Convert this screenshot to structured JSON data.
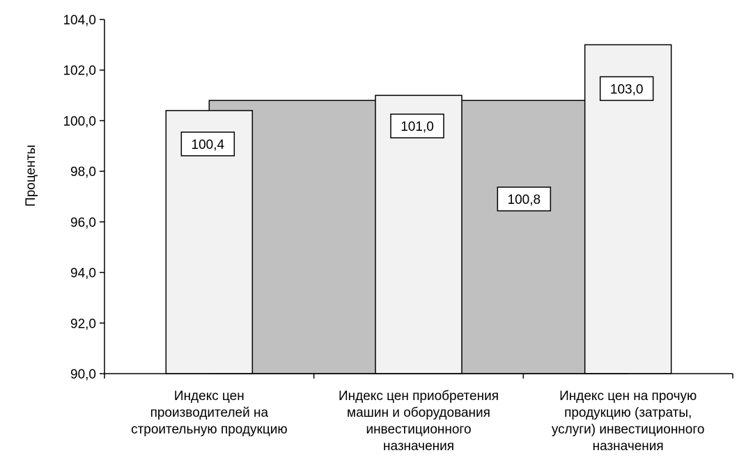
{
  "chart_data": {
    "type": "bar",
    "ylabel": "Проценты",
    "ylim": [
      90,
      104
    ],
    "ytick_step": 2,
    "ytick_labels": [
      "90,0",
      "92,0",
      "94,0",
      "96,0",
      "98,0",
      "100,0",
      "102,0",
      "104,0"
    ],
    "categories": [
      [
        "Индекс цен",
        "производителей на",
        "строительную продукцию"
      ],
      [
        "Индекс цен приобретения",
        "машин и оборудования",
        "инвестиционного",
        "назначения"
      ],
      [
        "Индекс цен на прочую",
        "продукцию (затраты,",
        "услуги) инвестиционного",
        "назначения"
      ]
    ],
    "series": [
      {
        "values": [
          100.4,
          101.0,
          103.0
        ],
        "labels": [
          "100,4",
          "101,0",
          "103,0"
        ],
        "color": "#f2f2f2"
      }
    ],
    "background_area": {
      "value": 100.8,
      "label": "100,8",
      "color": "#c0c0c0"
    },
    "grid": false,
    "legend": "none"
  }
}
